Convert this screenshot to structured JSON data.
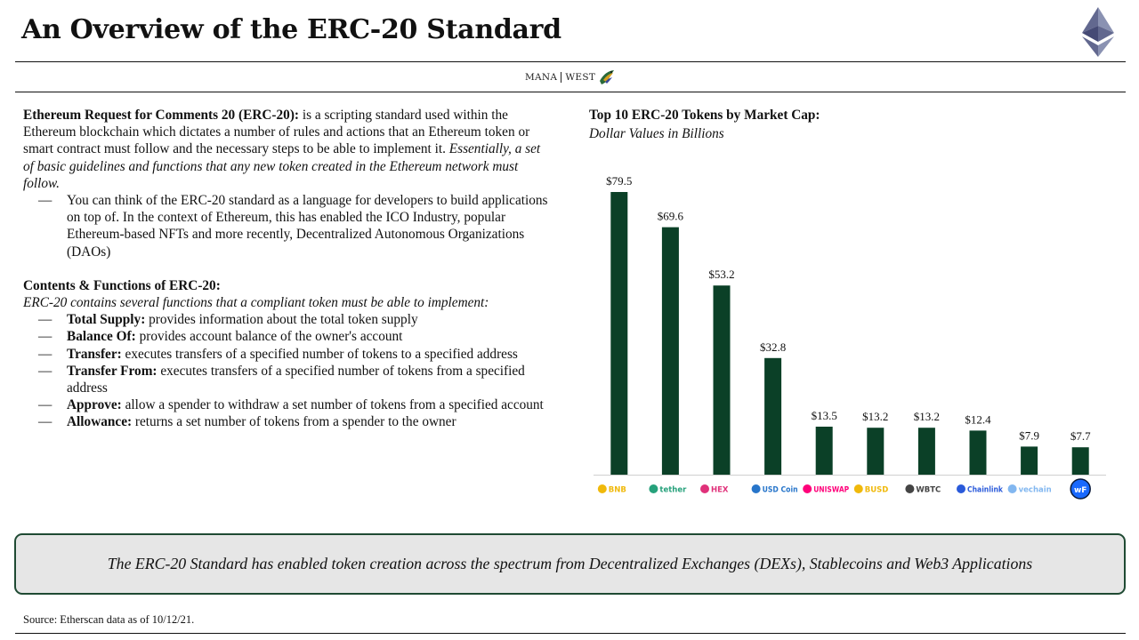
{
  "header": {
    "title": "An Overview of the ERC-20 Standard",
    "brand_left": "MANA",
    "brand_right": "WEST"
  },
  "intro": {
    "term": "Ethereum Request for Comments 20 (ERC-20):",
    "definition": " is a scripting standard used within the Ethereum blockchain which dictates a number of rules and actions that an Ethereum token or smart contract must follow and the necessary steps to be able to implement it. ",
    "emphasis": "Essentially, a set of basic guidelines and functions that any new token created in the Ethereum network must follow.",
    "bullet": "You can think of the ERC-20 standard as a language for developers to build applications on top of. In the context of Ethereum, this has enabled the ICO Industry, popular Ethereum-based NFTs and more recently, Decentralized Autonomous Organizations (DAOs)"
  },
  "contents": {
    "heading": "Contents & Functions of ERC-20:",
    "subheading": "ERC-20 contains several functions that a compliant token must be able to implement:",
    "functions": [
      {
        "name": "Total Supply:",
        "desc": " provides information about the total token supply"
      },
      {
        "name": "Balance Of:",
        "desc": " provides account balance of the owner's account"
      },
      {
        "name": "Transfer:",
        "desc": " executes transfers of a specified number of tokens to a specified address"
      },
      {
        "name": "Transfer From:",
        "desc": " executes transfers of a specified number of tokens from a specified address"
      },
      {
        "name": "Approve:",
        "desc": " allow a spender to withdraw a set number of tokens from a specified account"
      },
      {
        "name": "Allowance:",
        "desc": " returns a set number of tokens from a spender to the owner"
      }
    ]
  },
  "dash": "—",
  "chart_data": {
    "type": "bar",
    "title": "Top 10 ERC-20 Tokens by Market Cap:",
    "subtitle": "Dollar Values in Billions",
    "categories": [
      "BNB",
      "tether",
      "HEX",
      "USD Coin",
      "UNISWAP",
      "BUSD",
      "WBTC",
      "Chainlink",
      "vechain",
      "wrapped fantom"
    ],
    "values": [
      79.5,
      69.6,
      53.2,
      32.8,
      13.5,
      13.2,
      13.2,
      12.4,
      7.9,
      7.7
    ],
    "value_labels": [
      "$79.5",
      "$69.6",
      "$53.2",
      "$32.8",
      "$13.5",
      "$13.2",
      "$13.2",
      "$12.4",
      "$7.9",
      "$7.7"
    ],
    "bar_color": "#0b4027",
    "ylim": [
      0,
      85
    ],
    "grid": false,
    "legend": "none"
  },
  "callout": "The ERC-20 Standard has enabled token creation across the spectrum from Decentralized Exchanges (DEXs), Stablecoins and Web3 Applications",
  "source": "Source: Etherscan data as of 10/12/21."
}
